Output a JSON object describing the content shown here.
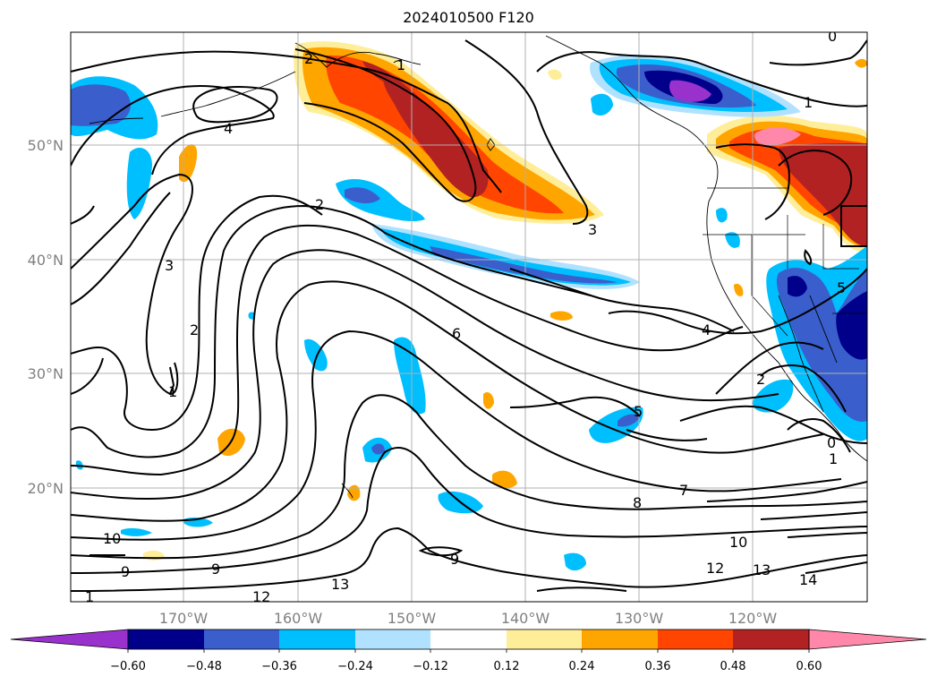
{
  "title": "2024010500 F120",
  "latitude_labels": [
    "50°N",
    "40°N",
    "30°N",
    "20°N"
  ],
  "longitude_labels": [
    "170°W",
    "160°W",
    "150°W",
    "140°W",
    "130°W",
    "120°W"
  ],
  "contour_labels": [
    "0",
    "2",
    "1",
    "4",
    "1",
    "2",
    "3",
    "3",
    "2",
    "1",
    "6",
    "4",
    "5",
    "7",
    "8",
    "10",
    "10",
    "9",
    "9",
    "9",
    "12",
    "13",
    "12",
    "13",
    "14",
    "2",
    "1",
    "5",
    "0",
    "1"
  ],
  "colorbar": {
    "tick_labels": [
      "−0.60",
      "−0.48",
      "−0.36",
      "−0.24",
      "−0.12",
      "0.12",
      "0.24",
      "0.36",
      "0.48",
      "0.60"
    ],
    "colors": [
      "#9932cc",
      "#00008b",
      "#3a5fcd",
      "#00bfff",
      "#b0e2ff",
      "#ffffff",
      "#ffee99",
      "#ffa500",
      "#ff4500",
      "#b22222",
      "#ff88aa"
    ],
    "extend": "both"
  },
  "colors": {
    "grid": "#b0b0b0",
    "contour": "#000000",
    "coast": "#000000"
  }
}
